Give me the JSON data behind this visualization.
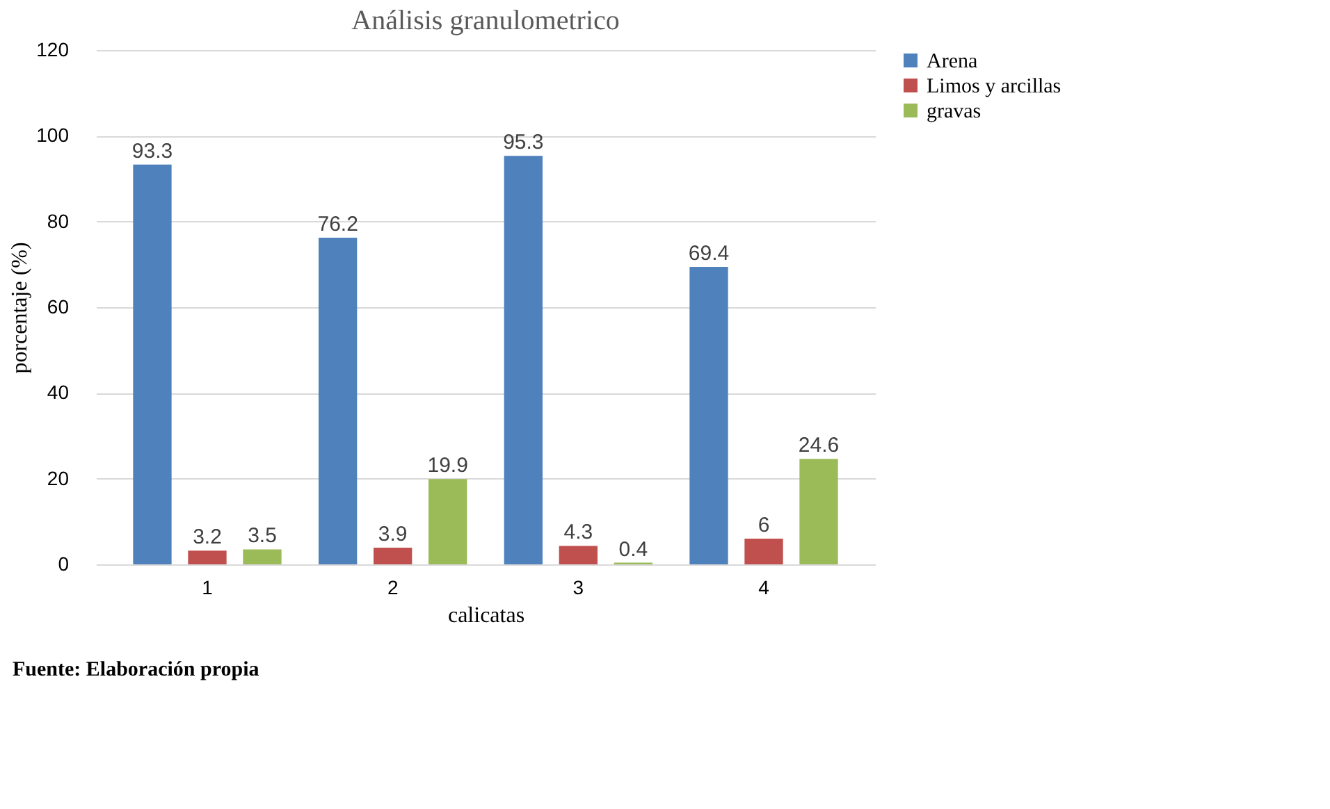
{
  "chart_data": {
    "type": "bar",
    "title": "Análisis granulometrico",
    "xlabel": "calicatas",
    "ylabel": "porcentaje (%)",
    "categories": [
      "1",
      "2",
      "3",
      "4"
    ],
    "series": [
      {
        "name": "Arena",
        "color": "#4f81bd",
        "values": [
          93.3,
          76.2,
          95.3,
          69.4
        ]
      },
      {
        "name": "Limos y arcillas",
        "color": "#c0504d",
        "values": [
          3.2,
          3.9,
          4.3,
          6
        ]
      },
      {
        "name": "gravas",
        "color": "#9bbb59",
        "values": [
          3.5,
          19.9,
          0.4,
          24.6
        ]
      }
    ],
    "ylim": [
      0,
      120
    ],
    "yticks": [
      0,
      20,
      40,
      60,
      80,
      100,
      120
    ],
    "grid": "y",
    "legend": "right",
    "data_labels": true,
    "annotations": [
      "Fuente: Elaboración propia"
    ]
  }
}
